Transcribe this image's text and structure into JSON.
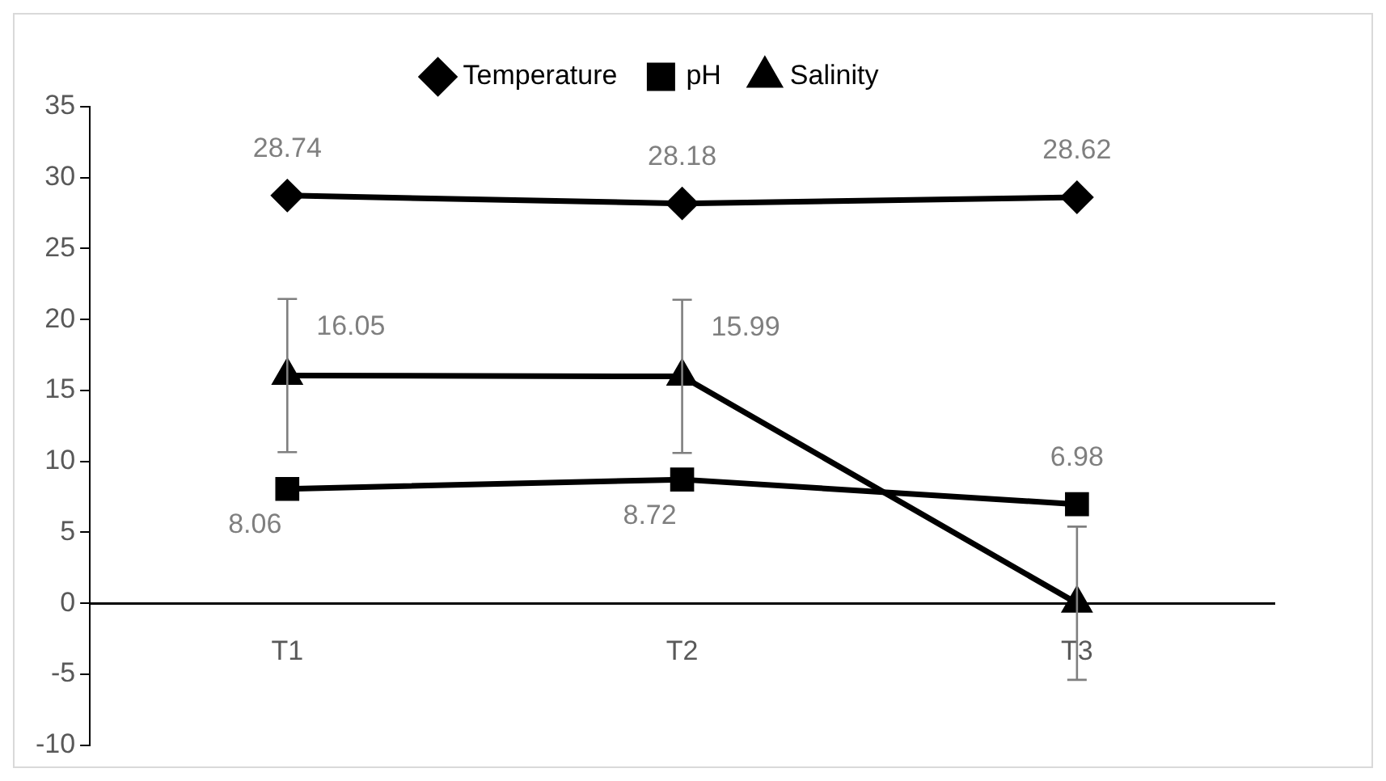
{
  "chart_data": {
    "type": "line",
    "categories": [
      "T1",
      "T2",
      "T3"
    ],
    "series": [
      {
        "name": "Temperature",
        "color": "#000000",
        "marker": "diamond",
        "values": [
          28.74,
          28.18,
          28.62
        ],
        "value_labels": [
          "28.74",
          "28.18",
          "28.62"
        ]
      },
      {
        "name": "pH",
        "color": "#000000",
        "marker": "square",
        "values": [
          8.06,
          8.72,
          6.98
        ],
        "value_labels": [
          "8.06",
          "8.72",
          "6.98"
        ]
      },
      {
        "name": "Salinity",
        "color": "#000000",
        "marker": "triangle",
        "values": [
          16.05,
          15.99,
          0
        ],
        "value_labels": [
          "16.05",
          "15.99",
          null
        ],
        "errors": [
          5.4,
          5.4,
          5.4
        ]
      }
    ],
    "ylim": [
      -10,
      35
    ],
    "yticks": [
      -10,
      -5,
      0,
      5,
      10,
      15,
      20,
      25,
      30,
      35
    ],
    "grid": false,
    "legend": "top"
  }
}
